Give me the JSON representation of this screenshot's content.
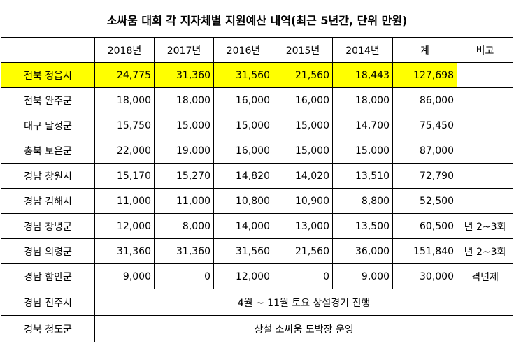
{
  "title": "소싸움 대회 각 지자체별 지원예산 내역(최근 5년간, 단위 만원)",
  "header": [
    "",
    "2018년",
    "2017년",
    "2016년",
    "2015년",
    "2014년",
    "계",
    "비고"
  ],
  "rows": [
    {
      "name": "전북 정읍시",
      "values": [
        "24,775",
        "31,360",
        "31,560",
        "21,560",
        "18,443",
        "127,698"
      ],
      "note": ""
    },
    {
      "name": "전북 완주군",
      "values": [
        "18,000",
        "18,000",
        "16,000",
        "16,000",
        "18,000",
        "86,000"
      ],
      "note": ""
    },
    {
      "name": "대구 달성군",
      "values": [
        "15,750",
        "15,000",
        "15,000",
        "15,000",
        "14,700",
        "75,450"
      ],
      "note": ""
    },
    {
      "name": "충북 보은군",
      "values": [
        "22,000",
        "19,000",
        "16,000",
        "15,000",
        "15,000",
        "87,000"
      ],
      "note": ""
    },
    {
      "name": "경남 창원시",
      "values": [
        "15,170",
        "15,270",
        "14,820",
        "14,020",
        "13,510",
        "72,790"
      ],
      "note": ""
    },
    {
      "name": "경남 김해시",
      "values": [
        "11,000",
        "11,000",
        "10,800",
        "10,900",
        "8,800",
        "52,500"
      ],
      "note": ""
    },
    {
      "name": "경남 창녕군",
      "values": [
        "12,000",
        "8,000",
        "14,000",
        "13,000",
        "13,500",
        "60,500"
      ],
      "note": "년 2~3회"
    },
    {
      "name": "경남 의령군",
      "values": [
        "31,360",
        "31,360",
        "31,560",
        "21,560",
        "36,000",
        "151,840"
      ],
      "note": "년 2~3회"
    },
    {
      "name": "경남 함안군",
      "values": [
        "9,000",
        "0",
        "12,000",
        "0",
        "9,000",
        "30,000"
      ],
      "note": "격년제"
    }
  ],
  "span_rows": [
    {
      "name": "경남 진주시",
      "text": "4월 ~ 11월 토요 상설경기 진행"
    },
    {
      "name": "경북 청도군",
      "text": "상설 소싸움 도박장 운영"
    }
  ]
}
